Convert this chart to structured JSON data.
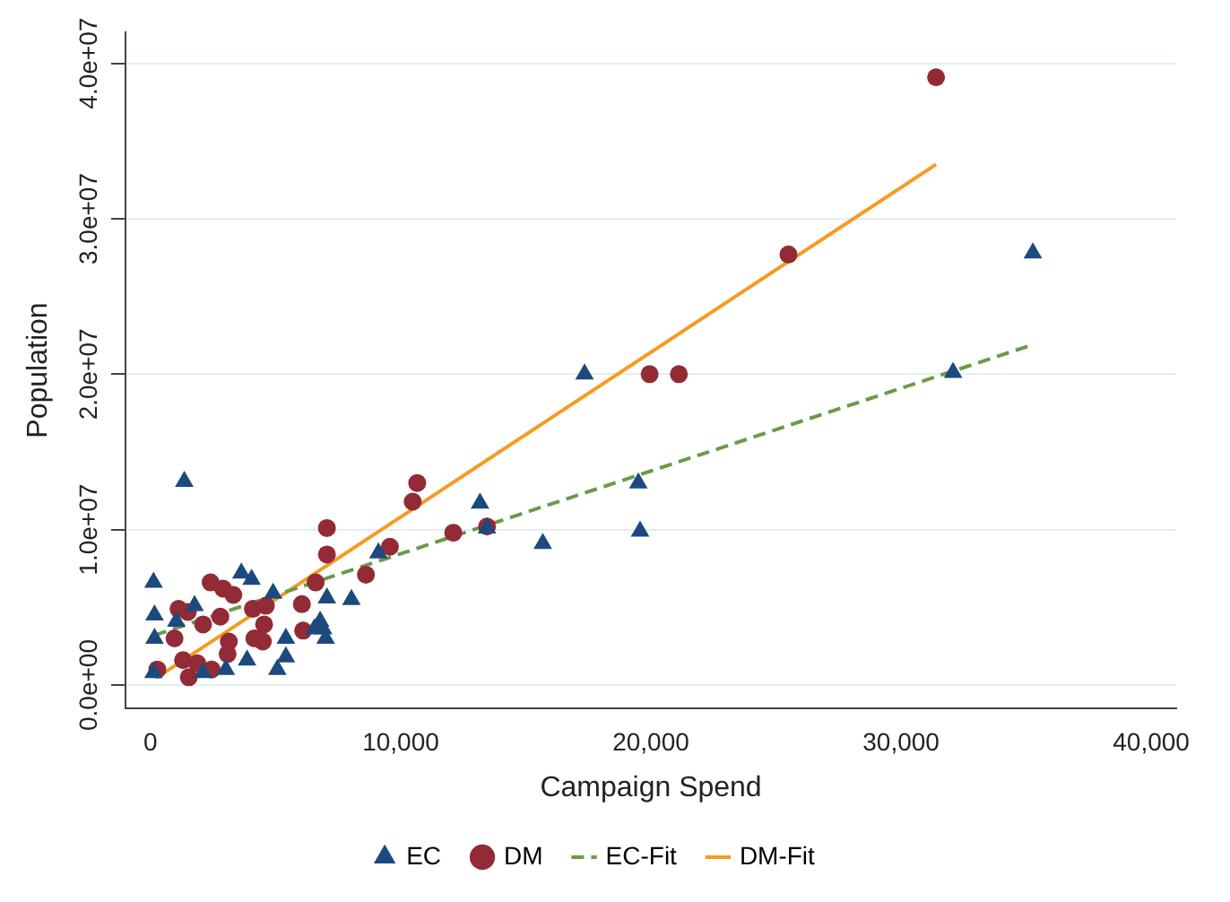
{
  "chart_data": {
    "type": "scatter",
    "xlabel": "Campaign Spend",
    "ylabel": "Population",
    "xlim": [
      -1000,
      41000
    ],
    "ylim": [
      -1500000,
      42000000
    ],
    "xticks": [
      0,
      {
        "value": 10000,
        "label": "10,000"
      },
      {
        "value": 20000,
        "label": "20,000"
      },
      {
        "value": 30000,
        "label": "30,000"
      },
      {
        "value": 40000,
        "label": "40,000"
      }
    ],
    "yticks": [
      {
        "value": 0,
        "label": "0.0e+00"
      },
      {
        "value": 10000000,
        "label": "1.0e+07"
      },
      {
        "value": 20000000,
        "label": "2.0e+07"
      },
      {
        "value": 30000000,
        "label": "3.0e+07"
      },
      {
        "value": 40000000,
        "label": "4.0e+07"
      }
    ],
    "grid": "y",
    "legend": "bottom",
    "series": [
      {
        "name": "EC",
        "type": "scatter",
        "marker": "triangle",
        "color": "#1c4a7e",
        "x": [
          1350,
          120,
          160,
          160,
          120,
          3630,
          4040,
          1760,
          1030,
          4900,
          5410,
          5410,
          3860,
          5070,
          3010,
          2100,
          7050,
          8030,
          6780,
          6900,
          7000,
          6550,
          9110,
          17350,
          19500,
          19570,
          15680,
          13170,
          13450,
          35270,
          32080
        ],
        "values": [
          13100000,
          6600000,
          4500000,
          3000000,
          800000,
          7200000,
          6800000,
          5100000,
          4100000,
          5900000,
          3000000,
          1800000,
          1600000,
          1000000,
          1000000,
          800000,
          5600000,
          5500000,
          4100000,
          3600000,
          3000000,
          3600000,
          8500000,
          20000000,
          13000000,
          9900000,
          9100000,
          11700000,
          10100000,
          27800000,
          20100000
        ]
      },
      {
        "name": "DM",
        "type": "scatter",
        "marker": "circle",
        "color": "#922b35",
        "x": [
          10660,
          10480,
          7050,
          7050,
          9570,
          12100,
          13450,
          8610,
          6600,
          2400,
          2900,
          3310,
          1120,
          1490,
          2790,
          2100,
          4090,
          4610,
          6050,
          4540,
          960,
          3130,
          3080,
          4150,
          4490,
          6100,
          1300,
          1870,
          2440,
          1530,
          270,
          31400,
          25500,
          19950,
          21120
        ],
        "values": [
          13000000,
          11800000,
          10100000,
          8400000,
          8900000,
          9800000,
          10200000,
          7100000,
          6600000,
          6600000,
          6200000,
          5800000,
          4900000,
          4700000,
          4400000,
          3900000,
          4900000,
          5100000,
          5200000,
          3900000,
          3000000,
          2800000,
          2000000,
          3000000,
          2800000,
          3500000,
          1600000,
          1400000,
          1000000,
          500000,
          1000000,
          39100000,
          27700000,
          20000000,
          20000000
        ]
      },
      {
        "name": "EC-Fit",
        "type": "line",
        "marker": "none",
        "line_style": "dashed",
        "color": "#6b9a4a",
        "x": [
          150,
          35270
        ],
        "values": [
          3200000,
          21900000
        ]
      },
      {
        "name": "DM-Fit",
        "type": "line",
        "marker": "none",
        "line_style": "solid",
        "color": "#f59b22",
        "x": [
          270,
          31400
        ],
        "values": [
          500000,
          33500000
        ]
      }
    ]
  }
}
